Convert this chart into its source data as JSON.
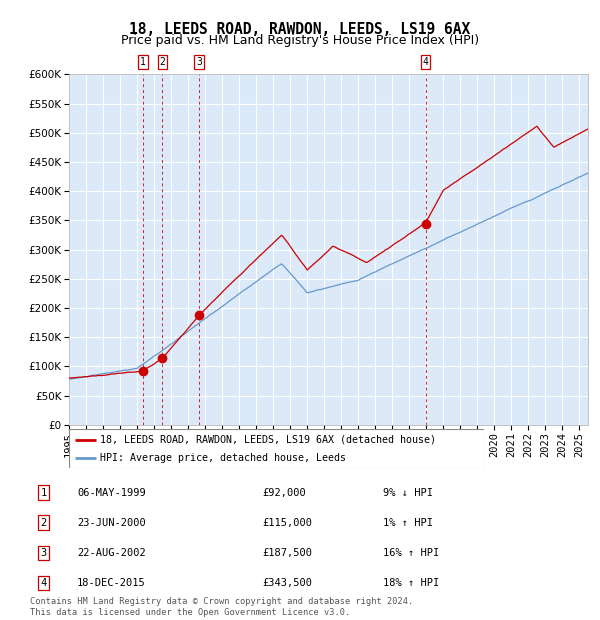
{
  "title": "18, LEEDS ROAD, RAWDON, LEEDS, LS19 6AX",
  "subtitle": "Price paid vs. HM Land Registry's House Price Index (HPI)",
  "legend_label_red": "18, LEEDS ROAD, RAWDON, LEEDS, LS19 6AX (detached house)",
  "legend_label_blue": "HPI: Average price, detached house, Leeds",
  "footer_line1": "Contains HM Land Registry data © Crown copyright and database right 2024.",
  "footer_line2": "This data is licensed under the Open Government Licence v3.0.",
  "transactions": [
    {
      "num": 1,
      "date": "06-MAY-1999",
      "price": 92000,
      "pct": "9%",
      "dir": "↓",
      "year_x": 1999.35
    },
    {
      "num": 2,
      "date": "23-JUN-2000",
      "price": 115000,
      "pct": "1%",
      "dir": "↑",
      "year_x": 2000.48
    },
    {
      "num": 3,
      "date": "22-AUG-2002",
      "price": 187500,
      "pct": "16%",
      "dir": "↑",
      "year_x": 2002.64
    },
    {
      "num": 4,
      "date": "18-DEC-2015",
      "price": 343500,
      "pct": "18%",
      "dir": "↑",
      "year_x": 2015.96
    }
  ],
  "ylim": [
    0,
    600000
  ],
  "yticks": [
    0,
    50000,
    100000,
    150000,
    200000,
    250000,
    300000,
    350000,
    400000,
    450000,
    500000,
    550000,
    600000
  ],
  "xlim_start": 1995.0,
  "xlim_end": 2025.5,
  "plot_bg": "#dce9f8",
  "grid_color": "#ffffff",
  "red_line_color": "#cc0000",
  "blue_line_color": "#6699cc",
  "vline_color": "#cc0000",
  "marker_color": "#cc0000",
  "box_edge_color": "#cc0000",
  "title_fontsize": 10.5,
  "subtitle_fontsize": 9,
  "tick_label_size": 7.5
}
